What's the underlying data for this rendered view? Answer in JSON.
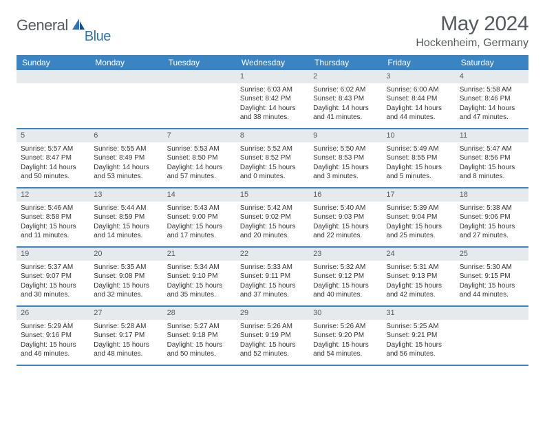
{
  "brand": {
    "name_part1": "General",
    "name_part2": "Blue",
    "text_color": "#555b60",
    "accent_color": "#2f74b5"
  },
  "title": {
    "month": "May 2024",
    "location": "Hockenheim, Germany"
  },
  "colors": {
    "header_bg": "#3b84c4",
    "header_text": "#ffffff",
    "daynum_bg": "#e7eaec",
    "row_divider": "#3b84c4",
    "body_text": "#333333",
    "page_bg": "#ffffff"
  },
  "day_names": [
    "Sunday",
    "Monday",
    "Tuesday",
    "Wednesday",
    "Thursday",
    "Friday",
    "Saturday"
  ],
  "weeks": [
    [
      {
        "blank": true
      },
      {
        "blank": true
      },
      {
        "blank": true
      },
      {
        "day": "1",
        "sunrise": "Sunrise: 6:03 AM",
        "sunset": "Sunset: 8:42 PM",
        "daylight": "Daylight: 14 hours and 38 minutes."
      },
      {
        "day": "2",
        "sunrise": "Sunrise: 6:02 AM",
        "sunset": "Sunset: 8:43 PM",
        "daylight": "Daylight: 14 hours and 41 minutes."
      },
      {
        "day": "3",
        "sunrise": "Sunrise: 6:00 AM",
        "sunset": "Sunset: 8:44 PM",
        "daylight": "Daylight: 14 hours and 44 minutes."
      },
      {
        "day": "4",
        "sunrise": "Sunrise: 5:58 AM",
        "sunset": "Sunset: 8:46 PM",
        "daylight": "Daylight: 14 hours and 47 minutes."
      }
    ],
    [
      {
        "day": "5",
        "sunrise": "Sunrise: 5:57 AM",
        "sunset": "Sunset: 8:47 PM",
        "daylight": "Daylight: 14 hours and 50 minutes."
      },
      {
        "day": "6",
        "sunrise": "Sunrise: 5:55 AM",
        "sunset": "Sunset: 8:49 PM",
        "daylight": "Daylight: 14 hours and 53 minutes."
      },
      {
        "day": "7",
        "sunrise": "Sunrise: 5:53 AM",
        "sunset": "Sunset: 8:50 PM",
        "daylight": "Daylight: 14 hours and 57 minutes."
      },
      {
        "day": "8",
        "sunrise": "Sunrise: 5:52 AM",
        "sunset": "Sunset: 8:52 PM",
        "daylight": "Daylight: 15 hours and 0 minutes."
      },
      {
        "day": "9",
        "sunrise": "Sunrise: 5:50 AM",
        "sunset": "Sunset: 8:53 PM",
        "daylight": "Daylight: 15 hours and 3 minutes."
      },
      {
        "day": "10",
        "sunrise": "Sunrise: 5:49 AM",
        "sunset": "Sunset: 8:55 PM",
        "daylight": "Daylight: 15 hours and 5 minutes."
      },
      {
        "day": "11",
        "sunrise": "Sunrise: 5:47 AM",
        "sunset": "Sunset: 8:56 PM",
        "daylight": "Daylight: 15 hours and 8 minutes."
      }
    ],
    [
      {
        "day": "12",
        "sunrise": "Sunrise: 5:46 AM",
        "sunset": "Sunset: 8:58 PM",
        "daylight": "Daylight: 15 hours and 11 minutes."
      },
      {
        "day": "13",
        "sunrise": "Sunrise: 5:44 AM",
        "sunset": "Sunset: 8:59 PM",
        "daylight": "Daylight: 15 hours and 14 minutes."
      },
      {
        "day": "14",
        "sunrise": "Sunrise: 5:43 AM",
        "sunset": "Sunset: 9:00 PM",
        "daylight": "Daylight: 15 hours and 17 minutes."
      },
      {
        "day": "15",
        "sunrise": "Sunrise: 5:42 AM",
        "sunset": "Sunset: 9:02 PM",
        "daylight": "Daylight: 15 hours and 20 minutes."
      },
      {
        "day": "16",
        "sunrise": "Sunrise: 5:40 AM",
        "sunset": "Sunset: 9:03 PM",
        "daylight": "Daylight: 15 hours and 22 minutes."
      },
      {
        "day": "17",
        "sunrise": "Sunrise: 5:39 AM",
        "sunset": "Sunset: 9:04 PM",
        "daylight": "Daylight: 15 hours and 25 minutes."
      },
      {
        "day": "18",
        "sunrise": "Sunrise: 5:38 AM",
        "sunset": "Sunset: 9:06 PM",
        "daylight": "Daylight: 15 hours and 27 minutes."
      }
    ],
    [
      {
        "day": "19",
        "sunrise": "Sunrise: 5:37 AM",
        "sunset": "Sunset: 9:07 PM",
        "daylight": "Daylight: 15 hours and 30 minutes."
      },
      {
        "day": "20",
        "sunrise": "Sunrise: 5:35 AM",
        "sunset": "Sunset: 9:08 PM",
        "daylight": "Daylight: 15 hours and 32 minutes."
      },
      {
        "day": "21",
        "sunrise": "Sunrise: 5:34 AM",
        "sunset": "Sunset: 9:10 PM",
        "daylight": "Daylight: 15 hours and 35 minutes."
      },
      {
        "day": "22",
        "sunrise": "Sunrise: 5:33 AM",
        "sunset": "Sunset: 9:11 PM",
        "daylight": "Daylight: 15 hours and 37 minutes."
      },
      {
        "day": "23",
        "sunrise": "Sunrise: 5:32 AM",
        "sunset": "Sunset: 9:12 PM",
        "daylight": "Daylight: 15 hours and 40 minutes."
      },
      {
        "day": "24",
        "sunrise": "Sunrise: 5:31 AM",
        "sunset": "Sunset: 9:13 PM",
        "daylight": "Daylight: 15 hours and 42 minutes."
      },
      {
        "day": "25",
        "sunrise": "Sunrise: 5:30 AM",
        "sunset": "Sunset: 9:15 PM",
        "daylight": "Daylight: 15 hours and 44 minutes."
      }
    ],
    [
      {
        "day": "26",
        "sunrise": "Sunrise: 5:29 AM",
        "sunset": "Sunset: 9:16 PM",
        "daylight": "Daylight: 15 hours and 46 minutes."
      },
      {
        "day": "27",
        "sunrise": "Sunrise: 5:28 AM",
        "sunset": "Sunset: 9:17 PM",
        "daylight": "Daylight: 15 hours and 48 minutes."
      },
      {
        "day": "28",
        "sunrise": "Sunrise: 5:27 AM",
        "sunset": "Sunset: 9:18 PM",
        "daylight": "Daylight: 15 hours and 50 minutes."
      },
      {
        "day": "29",
        "sunrise": "Sunrise: 5:26 AM",
        "sunset": "Sunset: 9:19 PM",
        "daylight": "Daylight: 15 hours and 52 minutes."
      },
      {
        "day": "30",
        "sunrise": "Sunrise: 5:26 AM",
        "sunset": "Sunset: 9:20 PM",
        "daylight": "Daylight: 15 hours and 54 minutes."
      },
      {
        "day": "31",
        "sunrise": "Sunrise: 5:25 AM",
        "sunset": "Sunset: 9:21 PM",
        "daylight": "Daylight: 15 hours and 56 minutes."
      },
      {
        "blank": true
      }
    ]
  ]
}
